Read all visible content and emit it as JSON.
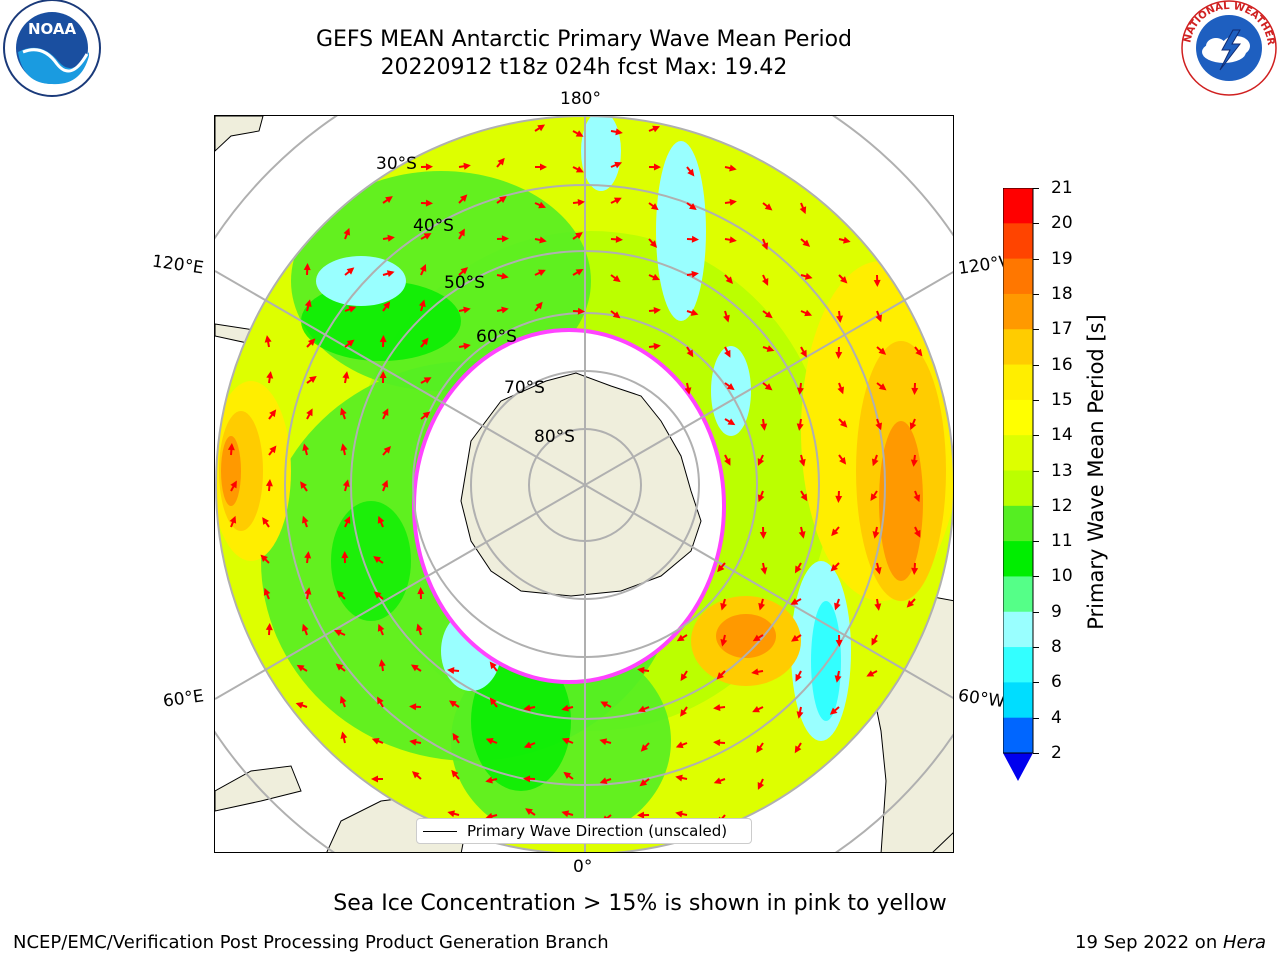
{
  "title": {
    "line1": "GEFS MEAN Antarctic Primary Wave Mean Period",
    "line2": "20220912 t18z 024h fcst   Max: 19.42"
  },
  "logos": {
    "left": {
      "name": "noaa-logo",
      "text": "NOAA"
    },
    "right": {
      "name": "nws-logo",
      "text": "NATIONAL WEATHER SERVICE"
    }
  },
  "map": {
    "projection": "south-polar-stereographic",
    "longitude_labels": {
      "top": "180°",
      "bottom": "0°",
      "left_upper": "120°E",
      "left_lower": "60°E",
      "right_upper": "120°W",
      "right_lower": "60°W"
    },
    "latitude_labels": [
      "30°S",
      "40°S",
      "50°S",
      "60°S",
      "70°S",
      "80°S"
    ],
    "legend": "Primary Wave Direction (unscaled)",
    "arrow_color": "#ff0000",
    "land_color": "#efeedc",
    "ice_edge_color": "#ff44ff"
  },
  "colorbar": {
    "label": "Primary Wave Mean Period [s]",
    "ticks": [
      "2",
      "4",
      "6",
      "8",
      "9",
      "10",
      "11",
      "12",
      "13",
      "14",
      "15",
      "16",
      "17",
      "18",
      "19",
      "20",
      "21"
    ],
    "colors": [
      "#0066ff",
      "#00ddff",
      "#33ffff",
      "#99ffff",
      "#55ff88",
      "#00ee00",
      "#55ee22",
      "#bbff00",
      "#ddff00",
      "#ffff00",
      "#ffee00",
      "#ffcc00",
      "#ff9900",
      "#ff7700",
      "#ff4400",
      "#ff0000"
    ],
    "extend_color": "#0000ee"
  },
  "notes": {
    "sea_ice": "Sea Ice Concentration > 15% is shown in pink to yellow",
    "branch": "NCEP/EMC/Verification Post Processing Product Generation Branch",
    "date_prefix": "19 Sep 2022 on ",
    "machine": "Hera"
  }
}
